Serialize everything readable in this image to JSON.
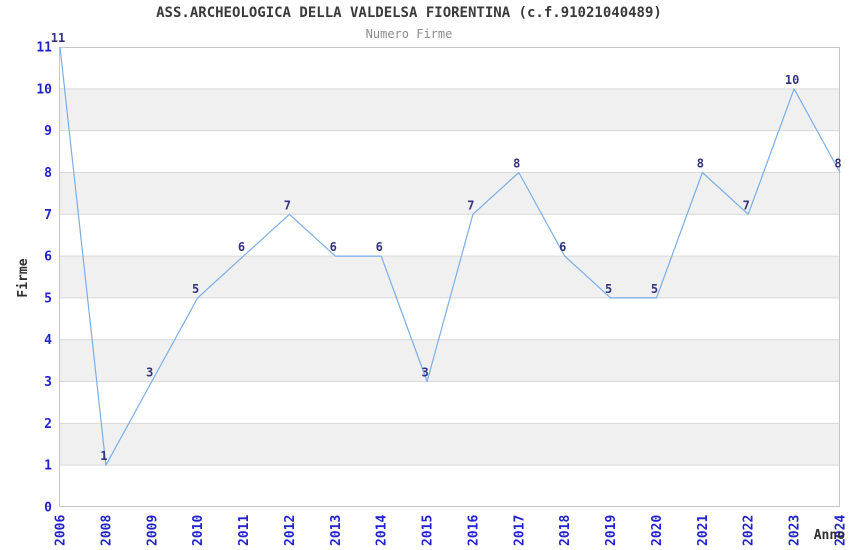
{
  "chart_data": {
    "type": "line",
    "title": "ASS.ARCHEOLOGICA DELLA VALDELSA FIORENTINA (c.f.91021040489)",
    "subtitle": "Numero Firme",
    "xlabel": "Anno",
    "ylabel": "Firme",
    "categories": [
      "2006",
      "2008",
      "2009",
      "2010",
      "2011",
      "2012",
      "2013",
      "2014",
      "2015",
      "2016",
      "2017",
      "2018",
      "2019",
      "2020",
      "2021",
      "2022",
      "2023",
      "2024"
    ],
    "values": [
      11,
      1,
      3,
      5,
      6,
      7,
      6,
      6,
      3,
      7,
      8,
      6,
      5,
      5,
      8,
      7,
      10,
      8
    ],
    "ylim": [
      0,
      11
    ],
    "yticks": [
      0,
      1,
      2,
      3,
      4,
      5,
      6,
      7,
      8,
      9,
      10,
      11
    ],
    "grid": true,
    "legend_position": "none",
    "plot_bands": "alternating horizontal gray stripes between odd-even y values",
    "colors": {
      "line": "#7aaee6",
      "tick_label": "#2222cc",
      "data_label": "#333380",
      "band": "#f0f0f0",
      "grid": "#d9d9d9",
      "border": "#c6c6c6",
      "title": "#3a3a3a",
      "subtitle": "#8c8c8c",
      "axis_title": "#303030",
      "background": "#ffffff"
    }
  }
}
